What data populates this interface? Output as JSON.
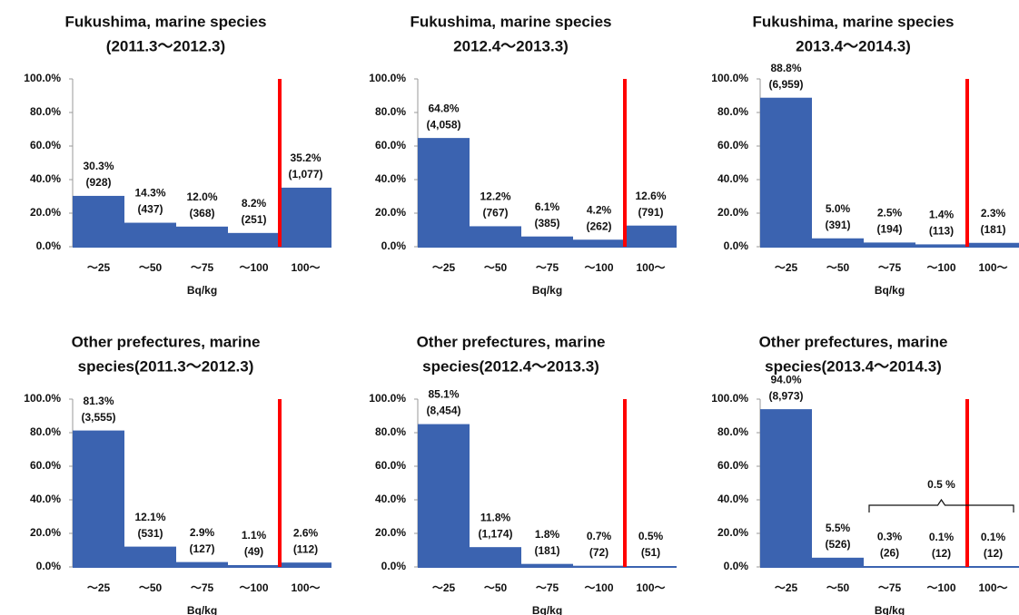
{
  "chart_data": [
    {
      "type": "bar",
      "title": [
        "Fukushima, marine species",
        "(2011.3〜2012.3)"
      ],
      "categories": [
        "〜25",
        "〜50",
        "〜75",
        "〜100",
        "100〜"
      ],
      "values": [
        30.3,
        14.3,
        12.0,
        8.2,
        35.2
      ],
      "value_labels": [
        "30.3%",
        "14.3%",
        "12.0%",
        "8.2%",
        "35.2%"
      ],
      "count_labels": [
        "(928)",
        "(437)",
        "(368)",
        "(251)",
        "(1,077)"
      ],
      "xlabel": "Bq/kg",
      "color": "#3b63b0",
      "ylim": [
        0,
        100
      ],
      "yticks": [
        {
          "value": 0,
          "label": "0.0%"
        },
        {
          "value": 20,
          "label": "20.0%"
        },
        {
          "value": 40,
          "label": "40.0%"
        },
        {
          "value": 60,
          "label": "60.0%"
        },
        {
          "value": 80,
          "label": "80.0%"
        },
        {
          "value": 100,
          "label": "100.0%"
        }
      ]
    },
    {
      "type": "bar",
      "title": [
        "Fukushima, marine species",
        "2012.4〜2013.3)"
      ],
      "categories": [
        "〜25",
        "〜50",
        "〜75",
        "〜100",
        "100〜"
      ],
      "values": [
        64.8,
        12.2,
        6.1,
        4.2,
        12.6
      ],
      "value_labels": [
        "64.8%",
        "12.2%",
        "6.1%",
        "4.2%",
        "12.6%"
      ],
      "count_labels": [
        "(4,058)",
        "(767)",
        "(385)",
        "(262)",
        "(791)"
      ],
      "xlabel": "Bq/kg",
      "color": "#3b63b0",
      "ylim": [
        0,
        100
      ],
      "yticks": [
        {
          "value": 0,
          "label": "0.0%"
        },
        {
          "value": 20,
          "label": "20.0%"
        },
        {
          "value": 40,
          "label": "40.0%"
        },
        {
          "value": 60,
          "label": "60.0%"
        },
        {
          "value": 80,
          "label": "80.0%"
        },
        {
          "value": 100,
          "label": "100.0%"
        }
      ]
    },
    {
      "type": "bar",
      "title": [
        "Fukushima, marine species",
        "2013.4〜2014.3)"
      ],
      "categories": [
        "〜25",
        "〜50",
        "〜75",
        "〜100",
        "100〜"
      ],
      "values": [
        88.8,
        5.0,
        2.5,
        1.4,
        2.3
      ],
      "value_labels": [
        "88.8%",
        "5.0%",
        "2.5%",
        "1.4%",
        "2.3%"
      ],
      "count_labels": [
        "(6,959)",
        "(391)",
        "(194)",
        "(113)",
        "(181)"
      ],
      "xlabel": "Bq/kg",
      "color": "#3b63b0",
      "ylim": [
        0,
        100
      ],
      "yticks": [
        {
          "value": 0,
          "label": "0.0%"
        },
        {
          "value": 20,
          "label": "20.0%"
        },
        {
          "value": 40,
          "label": "40.0%"
        },
        {
          "value": 60,
          "label": "60.0%"
        },
        {
          "value": 80,
          "label": "80.0%"
        },
        {
          "value": 100,
          "label": "100.0%"
        }
      ]
    },
    {
      "type": "bar",
      "title": [
        "Other prefectures, marine",
        "species(2011.3〜2012.3)"
      ],
      "categories": [
        "〜25",
        "〜50",
        "〜75",
        "〜100",
        "100〜"
      ],
      "values": [
        81.3,
        12.1,
        2.9,
        1.1,
        2.6
      ],
      "value_labels": [
        "81.3%",
        "12.1%",
        "2.9%",
        "1.1%",
        "2.6%"
      ],
      "count_labels": [
        "(3,555)",
        "(531)",
        "(127)",
        "(49)",
        "(112)"
      ],
      "xlabel": "Bq/kg",
      "color": "#3b63b0",
      "ylim": [
        0,
        100
      ],
      "yticks": [
        {
          "value": 0,
          "label": "0.0%"
        },
        {
          "value": 20,
          "label": "20.0%"
        },
        {
          "value": 40,
          "label": "40.0%"
        },
        {
          "value": 60,
          "label": "60.0%"
        },
        {
          "value": 80,
          "label": "80.0%"
        },
        {
          "value": 100,
          "label": "100.0%"
        }
      ]
    },
    {
      "type": "bar",
      "title": [
        "Other prefectures, marine",
        "species(2012.4〜2013.3)"
      ],
      "categories": [
        "〜25",
        "〜50",
        "〜75",
        "〜100",
        "100〜"
      ],
      "values": [
        85.1,
        11.8,
        1.8,
        0.7,
        0.5
      ],
      "value_labels": [
        "85.1%",
        "11.8%",
        "1.8%",
        "0.7%",
        "0.5%"
      ],
      "count_labels": [
        "(8,454)",
        "(1,174)",
        "(181)",
        "(72)",
        "(51)"
      ],
      "xlabel": "Bq/kg",
      "color": "#3b63b0",
      "ylim": [
        0,
        100
      ],
      "yticks": [
        {
          "value": 0,
          "label": "0.0%"
        },
        {
          "value": 20,
          "label": "20.0%"
        },
        {
          "value": 40,
          "label": "40.0%"
        },
        {
          "value": 60,
          "label": "60.0%"
        },
        {
          "value": 80,
          "label": "80.0%"
        },
        {
          "value": 100,
          "label": "100.0%"
        }
      ]
    },
    {
      "type": "bar",
      "title": [
        "Other prefectures, marine",
        "species(2013.4〜2014.3)"
      ],
      "categories": [
        "〜25",
        "〜50",
        "〜75",
        "〜100",
        "100〜"
      ],
      "values": [
        94.0,
        5.5,
        0.3,
        0.1,
        0.1
      ],
      "value_labels": [
        "94.0%",
        "5.5%",
        "0.3%",
        "0.1%",
        "0.1%"
      ],
      "count_labels": [
        "(8,973)",
        "(526)",
        "(26)",
        "(12)",
        "(12)"
      ],
      "annotation": "0.5 %",
      "xlabel": "Bq/kg",
      "color": "#3b63b0",
      "ylim": [
        0,
        100
      ],
      "yticks": [
        {
          "value": 0,
          "label": "0.0%"
        },
        {
          "value": 20,
          "label": "20.0%"
        },
        {
          "value": 40,
          "label": "40.0%"
        },
        {
          "value": 60,
          "label": "60.0%"
        },
        {
          "value": 80,
          "label": "80.0%"
        },
        {
          "value": 100,
          "label": "100.0%"
        }
      ]
    }
  ]
}
